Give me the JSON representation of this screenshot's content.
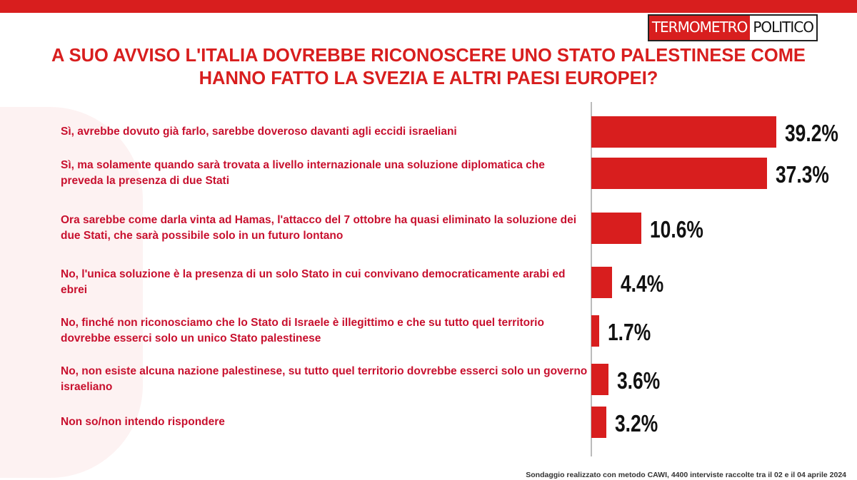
{
  "brand": {
    "part1": "TERMOMETRO",
    "part2": "POLITICO"
  },
  "chart_data": {
    "type": "hbar",
    "title": "A SUO AVVISO L'ITALIA DOVREBBE RICONOSCERE UNO STATO PALESTINESE COME HANNO FATTO LA SVEZIA E ALTRI PAESI EUROPEI?",
    "categories": [
      "Sì, avrebbe dovuto già farlo, sarebbe doveroso davanti agli eccidi israeliani",
      "Sì, ma solamente quando sarà  trovata a livello internazionale una soluzione diplomatica che preveda la presenza di due Stati",
      "Ora sarebbe come darla vinta ad Hamas, l'attacco del 7 ottobre ha quasi eliminato la soluzione dei due Stati, che sarà  possibile solo in un futuro lontano",
      "No, l'unica soluzione è la presenza di un solo Stato in cui convivano democraticamente arabi ed ebrei",
      "No, finché non riconosciamo che lo Stato di Israele è illegittimo e che su tutto quel territorio dovrebbe esserci solo un unico Stato palestinese",
      "No, non esiste alcuna nazione palestinese, su tutto quel territorio dovrebbe esserci solo un governo israeliano",
      "Non so/non intendo rispondere"
    ],
    "values": [
      39.2,
      37.3,
      10.6,
      4.4,
      1.7,
      3.6,
      3.2
    ],
    "value_labels": [
      "39.2%",
      "37.3%",
      "10.6%",
      "4.4%",
      "1.7%",
      "3.6%",
      "3.2%"
    ],
    "color": "#d81e1e",
    "footnote": "Sondaggio realizzato con metodo CAWI, 4400 interviste raccolte tra il 02 e il 04 aprile 2024"
  }
}
